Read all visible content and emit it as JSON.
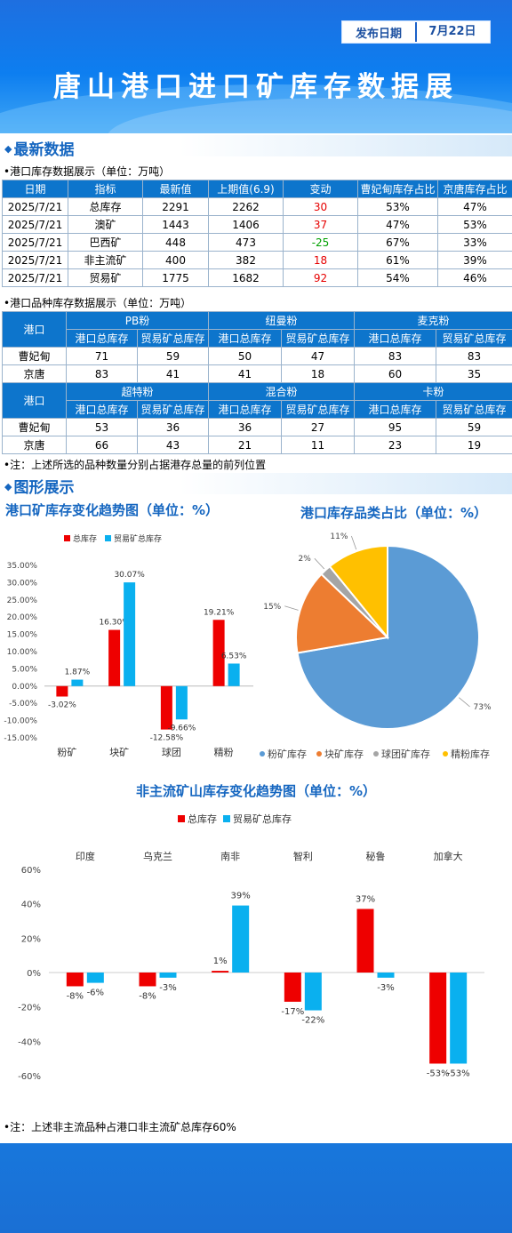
{
  "header": {
    "date_label": "发布日期",
    "date_value": "7月22日",
    "title": "唐山港口进口矿库存数据展"
  },
  "section1": {
    "title": "最新数据"
  },
  "table1": {
    "caption": "•港口库存数据展示（单位：万吨）",
    "headers": [
      "日期",
      "指标",
      "最新值",
      "上期值(6.9)",
      "变动",
      "曹妃甸库存占比",
      "京唐库存占比"
    ],
    "rows": [
      [
        "2025/7/21",
        "总库存",
        "2291",
        "2262",
        "30",
        "53%",
        "47%"
      ],
      [
        "2025/7/21",
        "澳矿",
        "1443",
        "1406",
        "37",
        "47%",
        "53%"
      ],
      [
        "2025/7/21",
        "巴西矿",
        "448",
        "473",
        "-25",
        "67%",
        "33%"
      ],
      [
        "2025/7/21",
        "非主流矿",
        "400",
        "382",
        "18",
        "61%",
        "39%"
      ],
      [
        "2025/7/21",
        "贸易矿",
        "1775",
        "1682",
        "92",
        "54%",
        "46%"
      ]
    ]
  },
  "table2": {
    "caption": "•港口品种库存数据展示（单位：万吨）",
    "port_label": "港口",
    "group1": [
      "PB粉",
      "纽曼粉",
      "麦克粉"
    ],
    "group2": [
      "超特粉",
      "混合粉",
      "卡粉"
    ],
    "sub": [
      "港口总库存",
      "贸易矿总库存"
    ],
    "rows1": [
      [
        "曹妃甸",
        "71",
        "59",
        "50",
        "47",
        "83",
        "83"
      ],
      [
        "京唐",
        "83",
        "41",
        "41",
        "18",
        "60",
        "35"
      ]
    ],
    "rows2": [
      [
        "曹妃甸",
        "53",
        "36",
        "36",
        "27",
        "95",
        "59"
      ],
      [
        "京唐",
        "66",
        "43",
        "21",
        "11",
        "23",
        "19"
      ]
    ],
    "note": "•注：上述所选的品种数量分别占据港存总量的前列位置"
  },
  "section2": {
    "title": "图形展示"
  },
  "chart_data": [
    {
      "type": "bar",
      "title": "港口矿库存变化趋势图（单位：%）",
      "categories": [
        "粉矿",
        "块矿",
        "球团",
        "精粉"
      ],
      "series": [
        {
          "name": "总库存",
          "color": "#ee0000",
          "values": [
            -3.02,
            16.3,
            -12.58,
            19.21
          ]
        },
        {
          "name": "贸易矿总库存",
          "color": "#0ab0ef",
          "values": [
            1.87,
            30.07,
            -9.66,
            6.53
          ]
        }
      ],
      "ylim": [
        -15,
        35
      ],
      "yticks": [
        "35.00%",
        "30.00%",
        "25.00%",
        "20.00%",
        "15.00%",
        "10.00%",
        "5.00%",
        "0.00%",
        "-5.00%",
        "-10.00%",
        "-15.00%"
      ],
      "labels": [
        [
          "-3.02%",
          "16.30%",
          "-12.58%",
          "19.21%"
        ],
        [
          "1.87%",
          "30.07%",
          "-9.66%",
          "6.53%"
        ]
      ]
    },
    {
      "type": "pie",
      "title": "港口库存品类占比（单位：%）",
      "slices": [
        {
          "name": "粉矿库存",
          "value": 73,
          "label": "73%",
          "color": "#5b9bd5"
        },
        {
          "name": "块矿库存",
          "value": 15,
          "label": "15%",
          "color": "#ed7d31"
        },
        {
          "name": "球团矿库存",
          "value": 2,
          "label": "2%",
          "color": "#a5a5a5"
        },
        {
          "name": "精粉库存",
          "value": 11,
          "label": "11%",
          "color": "#ffc000"
        }
      ]
    },
    {
      "type": "bar",
      "title": "非主流矿山库存变化趋势图（单位：%）",
      "categories": [
        "印度",
        "乌克兰",
        "南非",
        "智利",
        "秘鲁",
        "加拿大"
      ],
      "series": [
        {
          "name": "总库存",
          "color": "#ee0000",
          "values": [
            -8,
            -8,
            1,
            -17,
            37,
            -53
          ]
        },
        {
          "name": "贸易矿总库存",
          "color": "#0ab0ef",
          "values": [
            -6,
            -3,
            39,
            -22,
            -3,
            -53
          ]
        }
      ],
      "ylim": [
        -60,
        60
      ],
      "yticks": [
        "60%",
        "40%",
        "20%",
        "0%",
        "-20%",
        "-40%",
        "-60%"
      ],
      "labels": [
        [
          "-8%",
          "-8%",
          "1%",
          "-17%",
          "37%",
          "-53%"
        ],
        [
          "-6%",
          "-3%",
          "39%",
          "-22%",
          "-3%",
          "-53%"
        ]
      ]
    }
  ],
  "note2": "•注：上述非主流品种占港口非主流矿总库存60%"
}
